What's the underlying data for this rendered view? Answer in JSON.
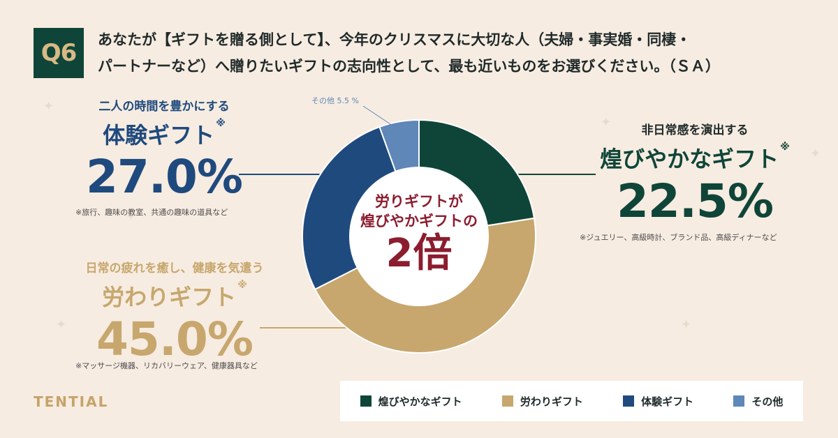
{
  "question": {
    "badge": "Q6",
    "line1": "あなたが【ギフトを贈る側として】、今年のクリスマスに大切な人（夫婦・事実婚・同棲・",
    "line2": "パートナーなど）へ贈りたいギフトの志向性として、最も近いものをお選びください。（ＳＡ）"
  },
  "blocks": {
    "experience": {
      "kicker": "二人の時間を豊かにする",
      "name": "体験ギフト",
      "mark": "※",
      "value": "27.0%",
      "note": "※旅行、趣味の教室、共通の趣味の道具など"
    },
    "comfort": {
      "kicker": "日常の疲れを癒し、健康を気遣う",
      "name": "労わりギフト",
      "mark": "※",
      "value": "45.0%",
      "note": "※マッサージ機器、リカバリーウェア、健康器具など"
    },
    "glam": {
      "kicker": "非日常感を演出する",
      "name": "煌びやかなギフト",
      "mark": "※",
      "value": "22.5%",
      "note": "※ジュエリー、高級時計、ブランド品、高級ディナーなど"
    },
    "other": {
      "label": "その他 5.5 %"
    }
  },
  "center": {
    "line1": "労りギフトが",
    "line2": "煌びやかギフトの",
    "line3": "2倍"
  },
  "brand": "TENTIAL",
  "colors": {
    "glam": "#0f4538",
    "comfort": "#c7a76e",
    "experience": "#1f4a7e",
    "other": "#5f87b8"
  },
  "chart_data": {
    "type": "pie",
    "variant": "donut",
    "categories": [
      "煌びやかなギフト",
      "労わりギフト",
      "体験ギフト",
      "その他"
    ],
    "values": [
      22.5,
      45.0,
      27.0,
      5.5
    ],
    "unit": "%",
    "legend": [
      "煌びやかなギフト",
      "労わりギフト",
      "体験ギフト",
      "その他"
    ],
    "legend_position": "bottom-right"
  }
}
